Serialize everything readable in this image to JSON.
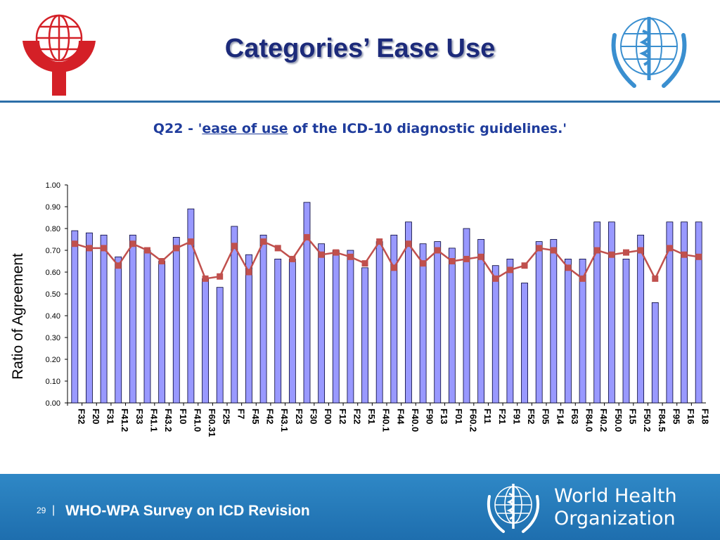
{
  "header": {
    "title": "Categories’ Ease Use",
    "left_logo": "wpa-globe-logo",
    "right_logo": "who-emblem-logo"
  },
  "subtitle": {
    "prefix": "Q22 - '",
    "link_text": "ease of use",
    "suffix": " of the ICD-10 diagnostic guidelines.'"
  },
  "footer": {
    "page_number": "29",
    "separator": "|",
    "text": "WHO-WPA Survey on ICD Revision",
    "org_name_line1": "World Health",
    "org_name_line2": "Organization"
  },
  "colors": {
    "bar_fill": "#9999ff",
    "line": "#c0504d",
    "title": "#1c2a7a",
    "subtitle": "#1f3c9c",
    "footer_bg": "#2a7fbf"
  },
  "chart_data": {
    "type": "bar",
    "ylabel": "Ratio of Agreement",
    "xlabel": "",
    "ylim": [
      0,
      1
    ],
    "yticks": [
      "0.00",
      "0.10",
      "0.20",
      "0.30",
      "0.40",
      "0.50",
      "0.60",
      "0.70",
      "0.80",
      "0.90",
      "1.00"
    ],
    "grid": false,
    "categories": [
      "F32",
      "F20",
      "F31",
      "F41.2",
      "F33",
      "F41.1",
      "F43.2",
      "F10",
      "F41.0",
      "F60.31",
      "F25",
      "F7",
      "F45",
      "F42",
      "F43.1",
      "F23",
      "F30",
      "F00",
      "F12",
      "F22",
      "F51",
      "F40.1",
      "F44",
      "F40.0",
      "F90",
      "F13",
      "F01",
      "F60.2",
      "F11",
      "F21",
      "F91",
      "F52",
      "F05",
      "F14",
      "F63",
      "F84.0",
      "F40.2",
      "F50.0",
      "F15",
      "F50.2",
      "F84.5",
      "F95",
      "F16",
      "F18"
    ],
    "series": [
      {
        "kind": "bar",
        "values": [
          0.79,
          0.78,
          0.77,
          0.67,
          0.77,
          0.7,
          0.65,
          0.76,
          0.89,
          0.57,
          0.53,
          0.81,
          0.68,
          0.77,
          0.66,
          0.66,
          0.92,
          0.73,
          0.7,
          0.7,
          0.62,
          0.74,
          0.77,
          0.83,
          0.73,
          0.74,
          0.71,
          0.8,
          0.75,
          0.63,
          0.66,
          0.55,
          0.74,
          0.75,
          0.66,
          0.66,
          0.83,
          0.83,
          0.66,
          0.77,
          0.46,
          0.83,
          0.83,
          0.83
        ]
      },
      {
        "kind": "line",
        "values": [
          0.73,
          0.71,
          0.71,
          0.63,
          0.73,
          0.7,
          0.65,
          0.71,
          0.74,
          0.57,
          0.58,
          0.72,
          0.6,
          0.74,
          0.71,
          0.66,
          0.76,
          0.68,
          0.69,
          0.67,
          0.64,
          0.74,
          0.62,
          0.73,
          0.64,
          0.7,
          0.65,
          0.66,
          0.67,
          0.57,
          0.61,
          0.63,
          0.71,
          0.7,
          0.62,
          0.57,
          0.7,
          0.68,
          0.69,
          0.7,
          0.57,
          0.71,
          0.68,
          0.67
        ]
      }
    ]
  }
}
